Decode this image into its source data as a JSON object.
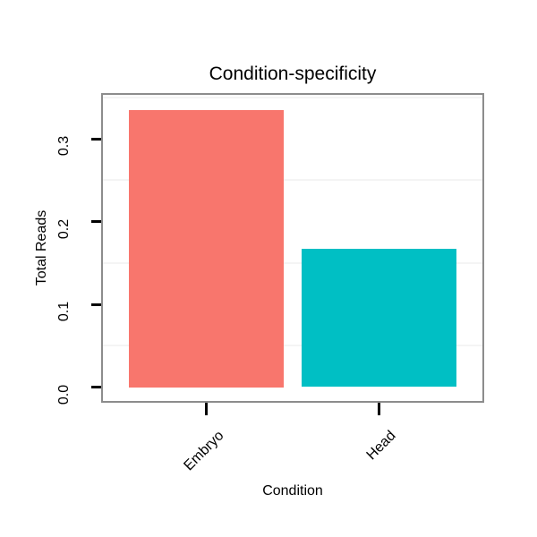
{
  "chart_data": {
    "type": "bar",
    "title": "Condition-specificity",
    "xlabel": "Condition",
    "ylabel": "Total Reads",
    "categories": [
      "Embryo",
      "Head"
    ],
    "values": [
      0.335,
      0.167
    ],
    "bar_colors": [
      "#F8766D",
      "#00BFC4"
    ],
    "ylim": [
      0,
      0.355
    ],
    "yticks": [
      0,
      0.1,
      0.2,
      0.3
    ],
    "ytick_labels": [
      "0.0",
      "0.1",
      "0.2",
      "0.3"
    ],
    "minor_gridlines": [
      0.05,
      0.15,
      0.25,
      0.35
    ],
    "grid": "minor-horizontal-only",
    "legend": "none",
    "x_tick_label_rotation_deg": 45,
    "y_tick_label_rotation_deg": 90,
    "panel_border_color": "#8c8c8c",
    "minor_grid_color": "#f4f4f4",
    "axis_tick_color": "#000000",
    "background_color": "#ffffff"
  }
}
